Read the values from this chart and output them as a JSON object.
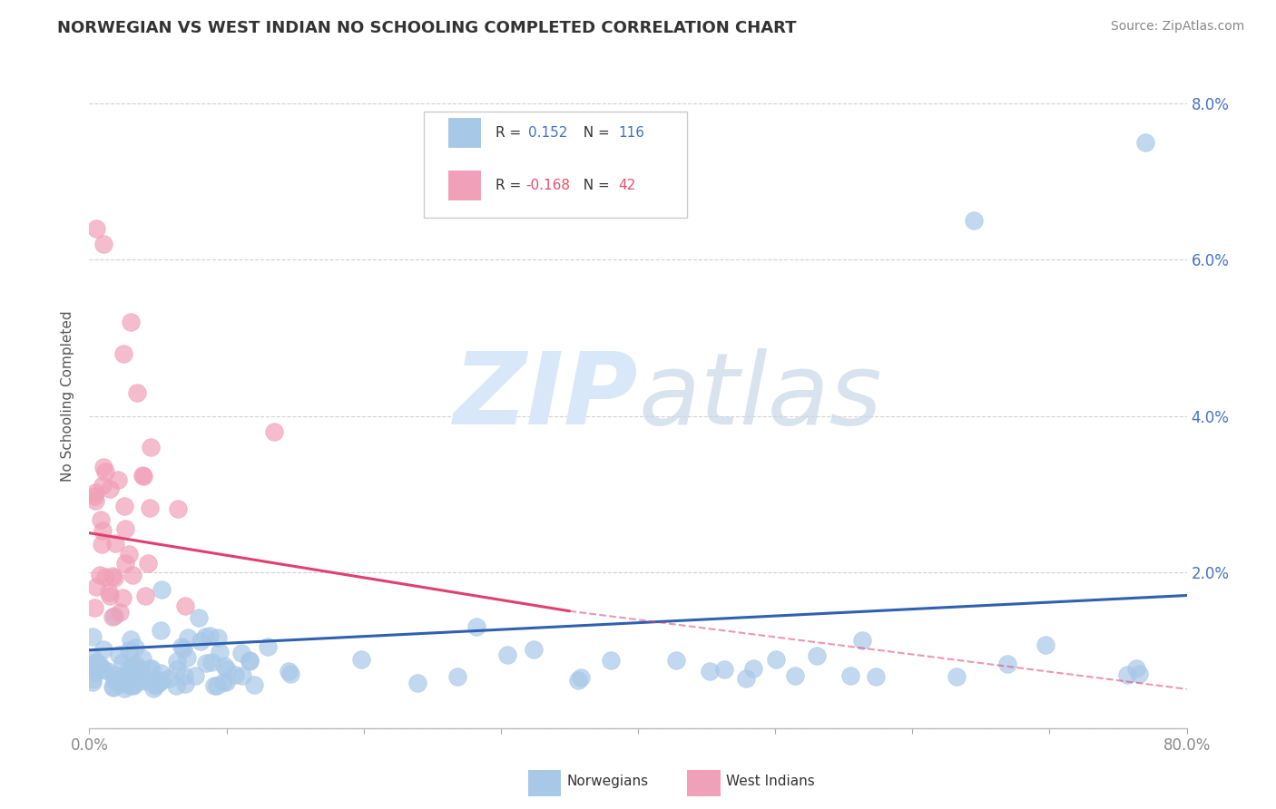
{
  "title": "NORWEGIAN VS WEST INDIAN NO SCHOOLING COMPLETED CORRELATION CHART",
  "source": "Source: ZipAtlas.com",
  "ylabel": "No Schooling Completed",
  "xlim": [
    0.0,
    0.8
  ],
  "ylim": [
    0.0,
    0.085
  ],
  "xtick_labels": [
    "0.0%",
    "",
    "",
    "",
    "",
    "",
    "",
    "",
    "80.0%"
  ],
  "xtick_positions": [
    0.0,
    0.1,
    0.2,
    0.3,
    0.4,
    0.5,
    0.6,
    0.7,
    0.8
  ],
  "ytick_labels": [
    "",
    "2.0%",
    "4.0%",
    "6.0%",
    "8.0%"
  ],
  "ytick_positions": [
    0.0,
    0.02,
    0.04,
    0.06,
    0.08
  ],
  "norwegian_R": 0.152,
  "norwegian_N": 116,
  "westindian_R": -0.168,
  "westindian_N": 42,
  "norwegian_color": "#a8c8e8",
  "westindian_color": "#f0a0b8",
  "norwegian_line_color": "#3060b0",
  "westindian_line_color": "#e04070",
  "watermark_color": "#d8e8f8",
  "background_color": "#ffffff",
  "grid_color": "#cccccc",
  "legend_r_color": "#4472c4",
  "legend_r2_color": "#e84c6e",
  "title_color": "#333333",
  "source_color": "#888888",
  "ylabel_color": "#555555",
  "ytick_color": "#4472c4",
  "xtick_color": "#888888"
}
